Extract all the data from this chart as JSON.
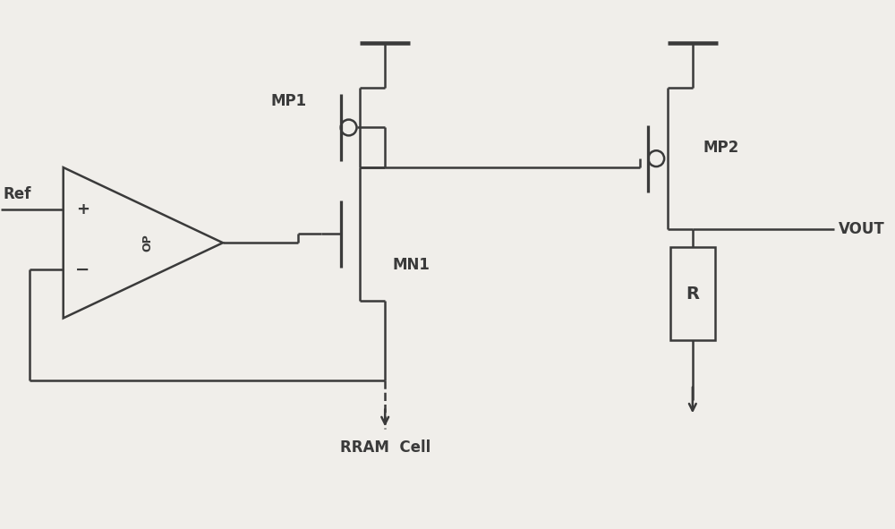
{
  "bg_color": "#f0eeea",
  "line_color": "#3a3a3a",
  "line_width": 1.8,
  "fig_width": 10.0,
  "fig_height": 5.91,
  "dpi": 100,
  "xlim": [
    0,
    10
  ],
  "ylim": [
    0,
    5.91
  ]
}
